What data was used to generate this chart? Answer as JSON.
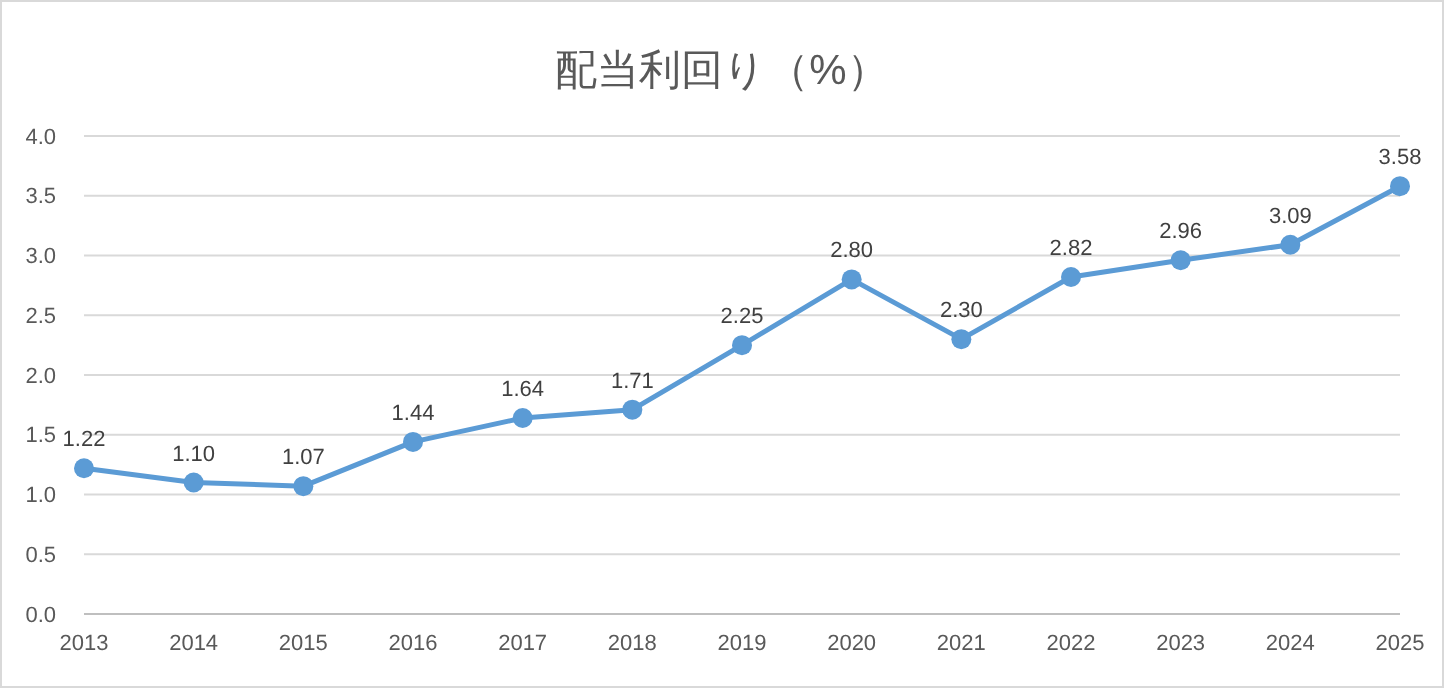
{
  "chart_data": {
    "type": "line",
    "title": "配当利回り（%）",
    "categories": [
      "2013",
      "2014",
      "2015",
      "2016",
      "2017",
      "2018",
      "2019",
      "2020",
      "2021",
      "2022",
      "2023",
      "2024",
      "2025"
    ],
    "series": [
      {
        "color": "#5b9bd5",
        "values": [
          1.22,
          1.1,
          1.07,
          1.44,
          1.64,
          1.71,
          2.25,
          2.8,
          2.3,
          2.82,
          2.96,
          3.09,
          3.58
        ],
        "value_labels": [
          "1.22",
          "1.10",
          "1.07",
          "1.44",
          "1.64",
          "1.71",
          "2.25",
          "2.80",
          "2.30",
          "2.82",
          "2.96",
          "3.09",
          "3.58"
        ]
      }
    ],
    "ylim": [
      0,
      4
    ],
    "yticks": [
      {
        "value": 0,
        "label": "0.0"
      },
      {
        "value": 0.5,
        "label": "0.5"
      },
      {
        "value": 1,
        "label": "1.0"
      },
      {
        "value": 1.5,
        "label": "1.5"
      },
      {
        "value": 2,
        "label": "2.0"
      },
      {
        "value": 2.5,
        "label": "2.5"
      },
      {
        "value": 3,
        "label": "3.0"
      },
      {
        "value": 3.5,
        "label": "3.5"
      },
      {
        "value": 4,
        "label": "4.0"
      }
    ],
    "grid": "y",
    "marker": "circle",
    "line_style": "solid"
  }
}
